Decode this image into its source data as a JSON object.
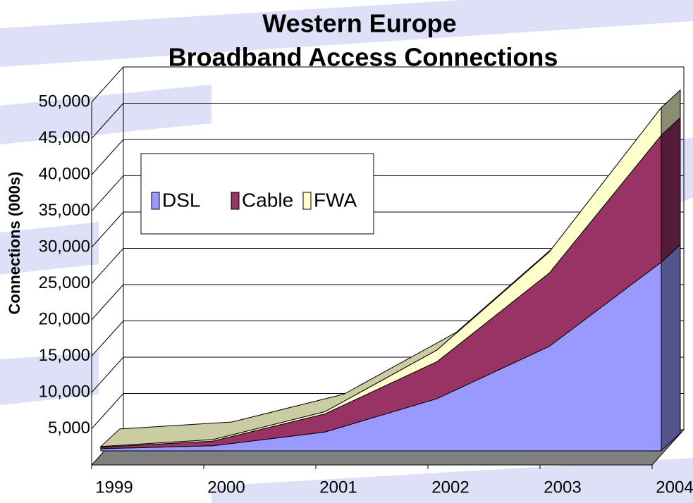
{
  "chart_data": {
    "type": "area3d",
    "title": [
      "Western Europe",
      "Broadband Access Connections"
    ],
    "y_label": "Connections (000s)",
    "categories": [
      "1999",
      "2000",
      "2001",
      "2002",
      "2003",
      "2004"
    ],
    "series": [
      {
        "name": "DSL",
        "color": "#9999ff",
        "values": [
          300,
          700,
          2600,
          7200,
          14400,
          26000
        ]
      },
      {
        "name": "Cable",
        "color": "#993366",
        "values": [
          200,
          650,
          2500,
          5100,
          10100,
          17500
        ]
      },
      {
        "name": "FWA",
        "color": "#ffffcc",
        "values": [
          100,
          200,
          300,
          1600,
          2900,
          3800
        ]
      }
    ],
    "ylim": [
      0,
      50000
    ],
    "yticks": [
      {
        "value": 5000,
        "label": "5,000"
      },
      {
        "value": 10000,
        "label": "10,000"
      },
      {
        "value": 15000,
        "label": "15,000"
      },
      {
        "value": 20000,
        "label": "20,000"
      },
      {
        "value": 25000,
        "label": "25,000"
      },
      {
        "value": 30000,
        "label": "30,000"
      },
      {
        "value": 35000,
        "label": "35,000"
      },
      {
        "value": 40000,
        "label": "40,000"
      },
      {
        "value": 45000,
        "label": "45,000"
      },
      {
        "value": 50000,
        "label": "50,000"
      }
    ],
    "grid": true,
    "stacked": true
  }
}
